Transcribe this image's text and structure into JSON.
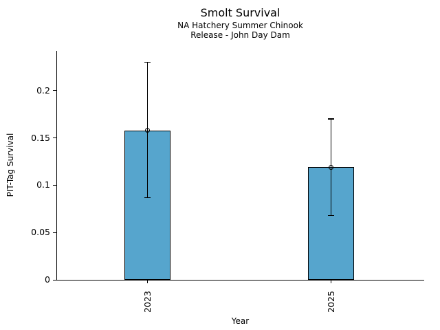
{
  "chart_data": {
    "type": "bar",
    "title": "Smolt Survival",
    "subtitle1": "NA Hatchery Summer Chinook",
    "subtitle2": "Release - John Day Dam",
    "xlabel": "Year",
    "ylabel": "PIT-Tag Survival",
    "categories": [
      "2023",
      "2025"
    ],
    "values": [
      0.158,
      0.119
    ],
    "error_low": [
      0.087,
      0.068
    ],
    "error_high": [
      0.23,
      0.17
    ],
    "yticks": [
      0,
      0.05,
      0.1,
      0.15,
      0.2
    ],
    "ytick_labels": [
      "0",
      "0.05",
      "0.1",
      "0.15",
      "0.2"
    ],
    "ylim": [
      0,
      0.242
    ],
    "grid": false,
    "legend": false,
    "bar_color": "#56a5cd",
    "bar_edge_color": "#000000",
    "error_color": "#000000",
    "marker": "open-circle",
    "background": "#ffffff"
  }
}
